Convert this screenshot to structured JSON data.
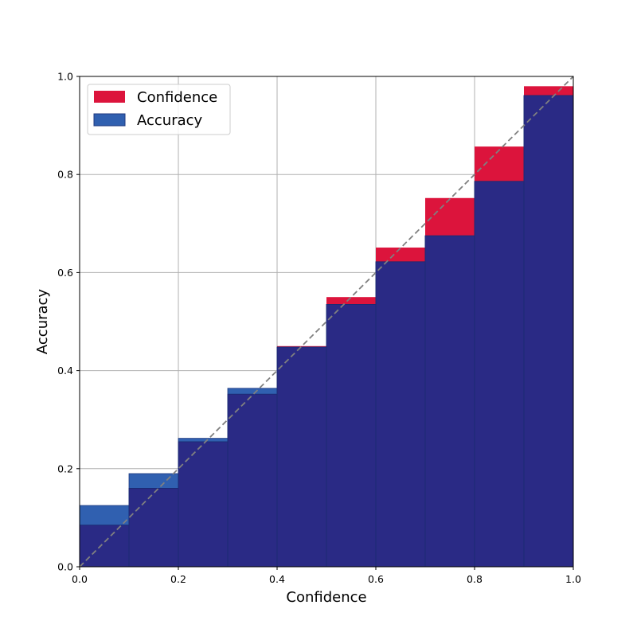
{
  "chart_data": {
    "type": "bar",
    "title": "",
    "xlabel": "Confidence",
    "ylabel": "Accuracy",
    "xlim": [
      0.0,
      1.0
    ],
    "ylim": [
      0.0,
      1.0
    ],
    "x_ticks": [
      "0.0",
      "0.2",
      "0.4",
      "0.6",
      "0.8",
      "1.0"
    ],
    "y_ticks": [
      "0.0",
      "0.2",
      "0.4",
      "0.6",
      "0.8",
      "1.0"
    ],
    "grid": true,
    "legend_position": "top-left",
    "bin_edges": [
      0.0,
      0.1,
      0.2,
      0.3,
      0.4,
      0.5,
      0.6,
      0.7,
      0.8,
      0.9,
      1.0
    ],
    "series": [
      {
        "name": "Confidence",
        "color": "#dc143c",
        "values": [
          0.085,
          0.16,
          0.255,
          0.352,
          0.45,
          0.55,
          0.651,
          0.752,
          0.857,
          0.98
        ]
      },
      {
        "name": "Accuracy",
        "color": "#3060b0",
        "values": [
          0.125,
          0.19,
          0.262,
          0.364,
          0.448,
          0.535,
          0.622,
          0.675,
          0.786,
          0.961
        ]
      }
    ],
    "overlap_color": "#2a2a85",
    "reference_line": {
      "from": [
        0.0,
        0.0
      ],
      "to": [
        1.0,
        1.0
      ],
      "style": "dashed",
      "color": "#808080"
    }
  }
}
